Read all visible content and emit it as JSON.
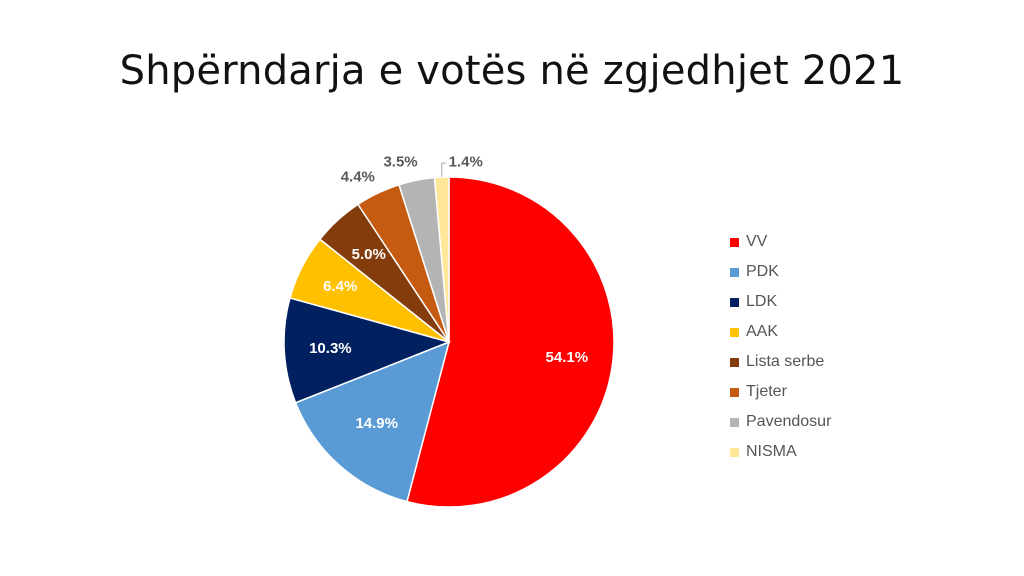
{
  "chart_data": {
    "type": "pie",
    "title": "Shpërndarja e votës në zgjedhjet 2021",
    "legend_position": "right",
    "categories": [
      "VV",
      "PDK",
      "LDK",
      "AAK",
      "Lista serbe",
      "Tjeter",
      "Pavendosur",
      "NISMA"
    ],
    "values": [
      54.1,
      14.9,
      10.3,
      6.4,
      5.0,
      4.4,
      3.5,
      1.4
    ],
    "labels": [
      "54.1%",
      "14.9%",
      "10.3%",
      "6.4%",
      "5.0%",
      "4.4%",
      "3.5%",
      "1.4%"
    ],
    "colors": [
      "#ff0000",
      "#5b9bd5",
      "#002060",
      "#ffc000",
      "#843c0c",
      "#c55a11",
      "#b4b4b4",
      "#ffe699"
    ],
    "label_colors": [
      "#ffffff",
      "#ffffff",
      "#ffffff",
      "#ffffff",
      "#ffffff",
      "#595959",
      "#595959",
      "#595959"
    ]
  }
}
